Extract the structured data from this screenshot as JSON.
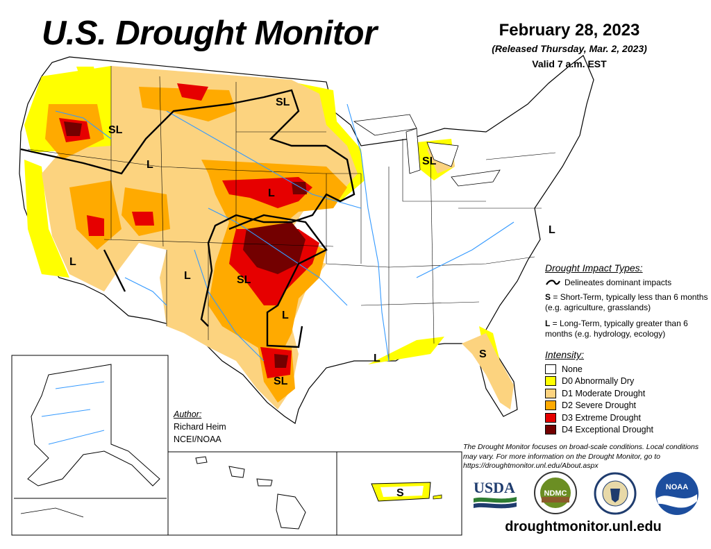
{
  "title": "U.S. Drought Monitor",
  "date": "February 28, 2023",
  "released": "(Released Thursday, Mar. 2, 2023)",
  "valid": "Valid 7 a.m. EST",
  "map_labels": {
    "sl_idaho": "SL",
    "sl_north_dakota": "SL",
    "sl_michigan": "SL",
    "l_idaho": "L",
    "l_nebraska": "L",
    "l_california": "L",
    "l_new_mexico": "L",
    "sl_oklahoma": "SL",
    "l_texas": "L",
    "sl_texas": "SL",
    "l_louisiana": "L",
    "s_florida": "S",
    "l_virginia": "L",
    "s_puerto_rico": "S"
  },
  "impacts": {
    "heading": "Drought Impact Types:",
    "line_label": "Delineates dominant impacts",
    "s_key": "S",
    "s_text": " = Short-Term, typically less than 6 months (e.g. agriculture, grasslands)",
    "l_key": "L",
    "l_text": " = Long-Term, typically greater than 6 months (e.g. hydrology, ecology)"
  },
  "intensity": {
    "heading": "Intensity:",
    "items": [
      {
        "label": "None",
        "color": "#ffffff"
      },
      {
        "label": "D0 Abnormally Dry",
        "color": "#ffff00"
      },
      {
        "label": "D1 Moderate Drought",
        "color": "#fcd37f"
      },
      {
        "label": "D2 Severe Drought",
        "color": "#ffaa00"
      },
      {
        "label": "D3 Extreme Drought",
        "color": "#e60000"
      },
      {
        "label": "D4 Exceptional Drought",
        "color": "#730000"
      }
    ]
  },
  "author": {
    "heading": "Author:",
    "name": "Richard Heim",
    "org": "NCEI/NOAA"
  },
  "disclaimer": "The Drought Monitor focuses on broad-scale conditions. Local conditions may vary. For more information on the Drought Monitor, go to https://droughtmonitor.unl.edu/About.aspx",
  "logos": {
    "usda": "USDA",
    "ndmc": "NDMC",
    "noaa": "NOAA"
  },
  "website": "droughtmonitor.unl.edu",
  "colors": {
    "d0": "#ffff00",
    "d1": "#fcd37f",
    "d2": "#ffaa00",
    "d3": "#e60000",
    "d4": "#730000",
    "river": "#3399ff"
  }
}
